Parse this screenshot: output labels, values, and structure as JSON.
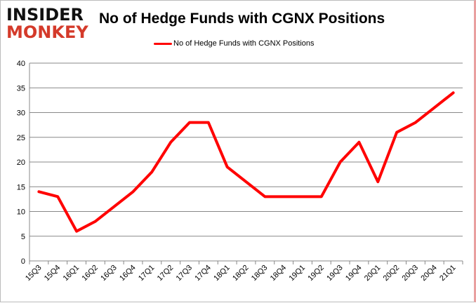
{
  "logo": {
    "line1": "INSIDER",
    "line2": "MONKEY"
  },
  "chart_data": {
    "type": "line",
    "title": "No of Hedge Funds with CGNX Positions",
    "categories": [
      "15Q3",
      "15Q4",
      "16Q1",
      "16Q2",
      "16Q3",
      "16Q4",
      "17Q1",
      "17Q2",
      "17Q3",
      "17Q4",
      "18Q1",
      "18Q2",
      "18Q3",
      "18Q4",
      "19Q1",
      "19Q2",
      "19Q3",
      "19Q4",
      "20Q1",
      "20Q2",
      "20Q3",
      "20Q4",
      "21Q1"
    ],
    "series": [
      {
        "name": "No of Hedge Funds with CGNX Positions",
        "color": "#ff0000",
        "values": [
          14,
          13,
          6,
          8,
          11,
          14,
          18,
          24,
          28,
          28,
          19,
          16,
          13,
          13,
          13,
          13,
          20,
          24,
          16,
          26,
          28,
          31,
          34
        ]
      }
    ],
    "ylim": [
      0,
      40
    ],
    "yticks": [
      0,
      5,
      10,
      15,
      20,
      25,
      30,
      35,
      40
    ],
    "grid": true,
    "legend": "top"
  }
}
